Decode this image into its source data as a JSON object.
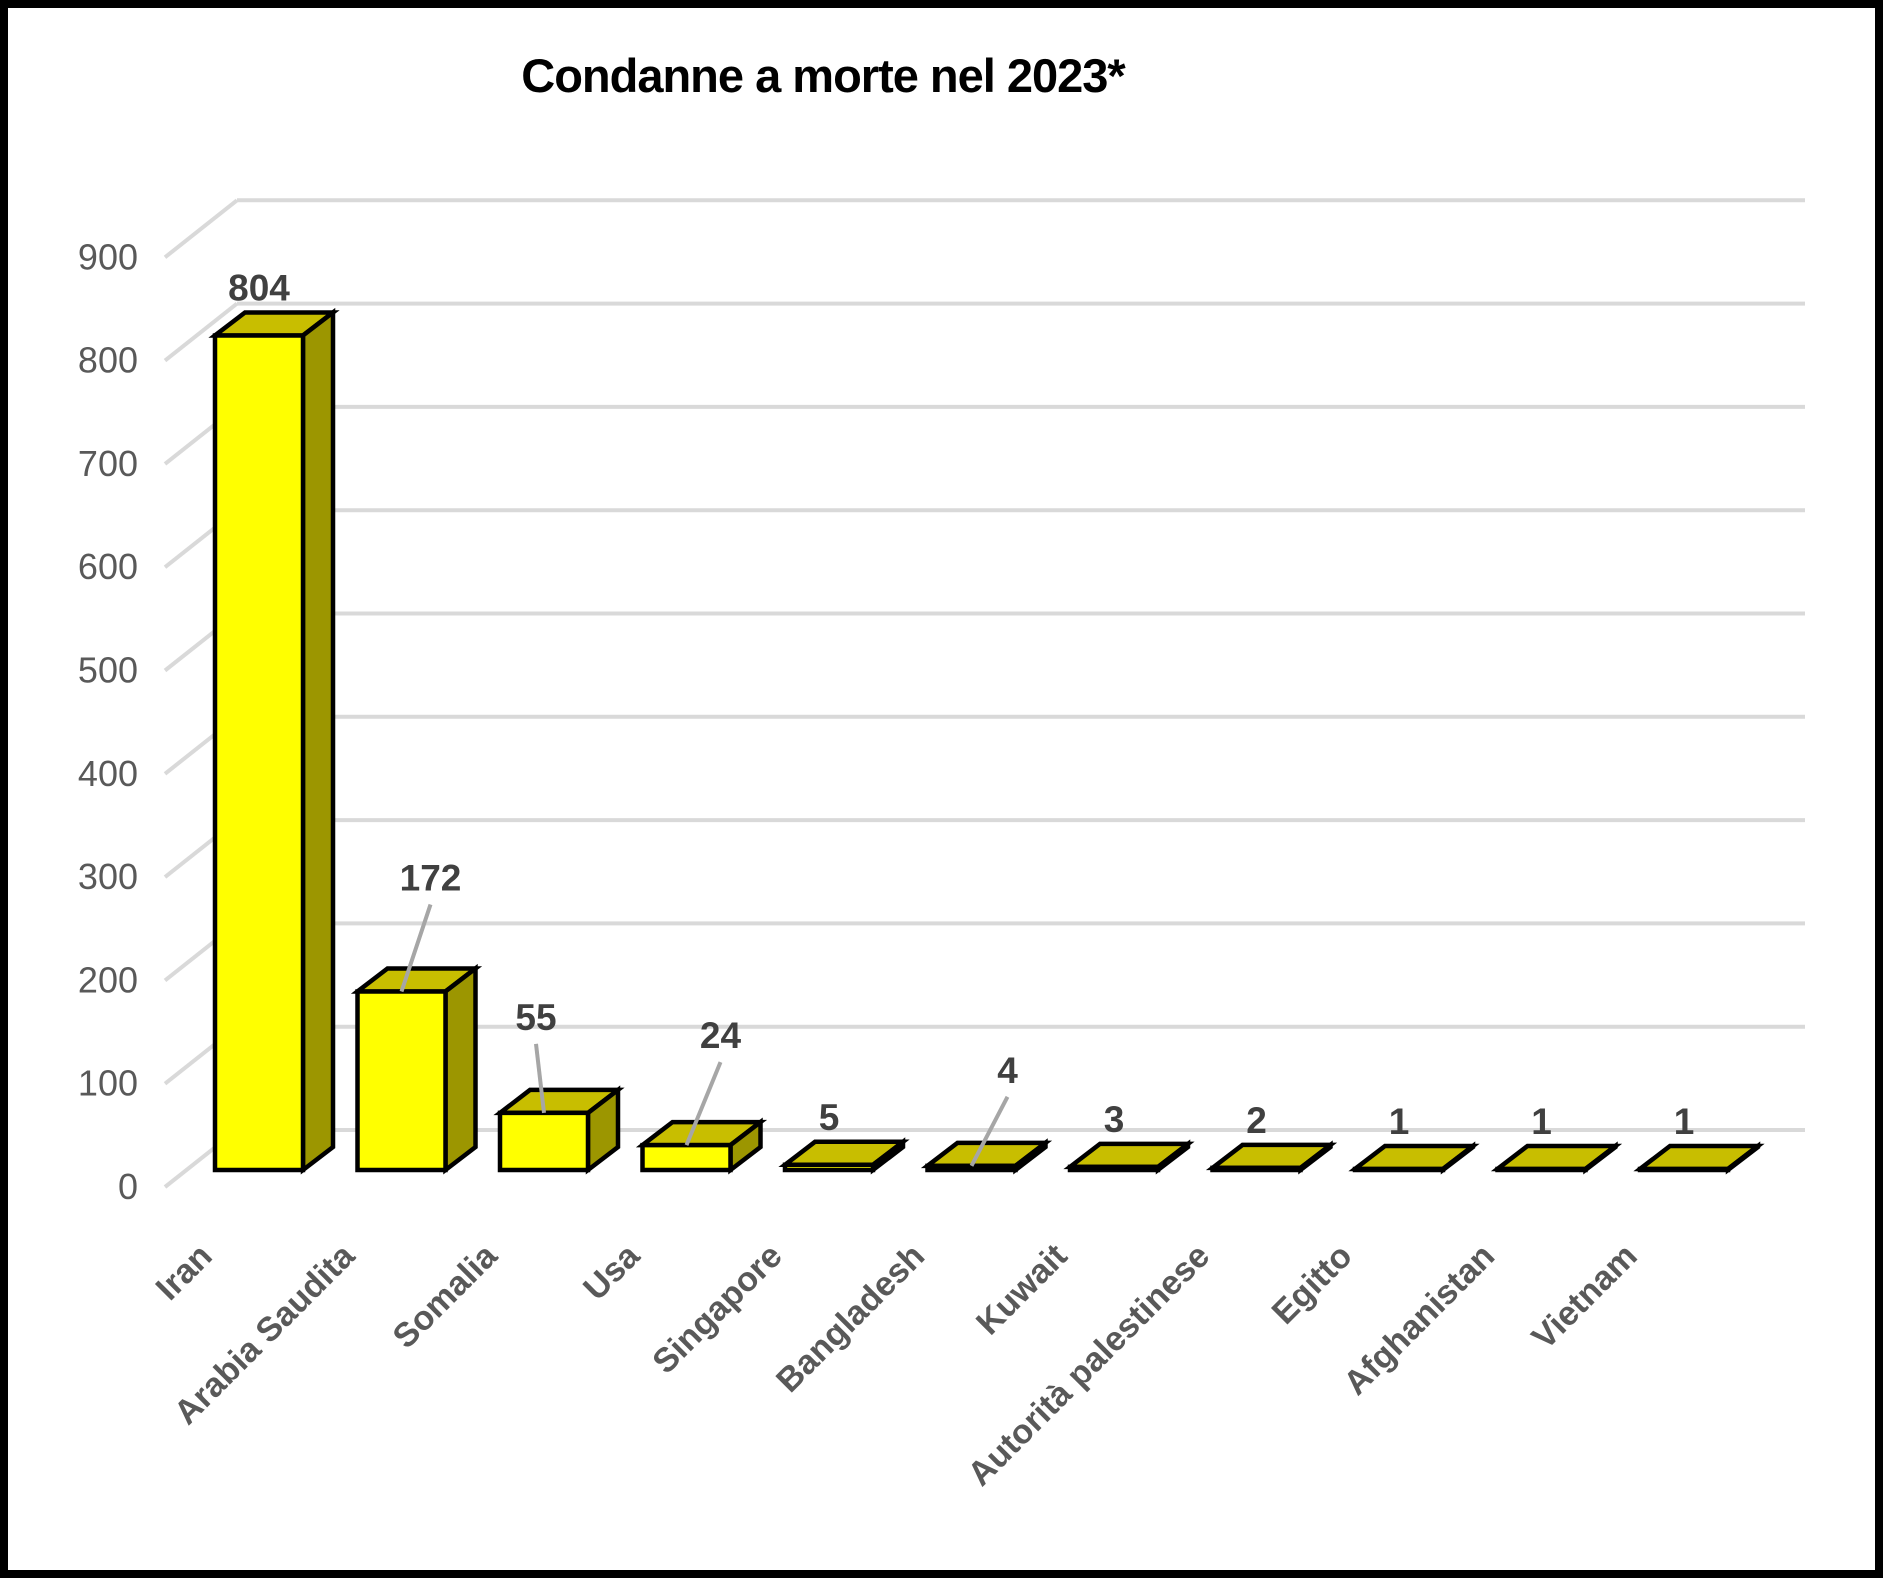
{
  "frame": {
    "background_color": "#FFFFFF",
    "border_color": "#000000"
  },
  "chart_data": {
    "type": "bar",
    "projection": "3d",
    "title": "Condanne a morte nel 2023*",
    "categories": [
      "Iran",
      "Arabia Saudita",
      "Somalia",
      "Usa",
      "Singapore",
      "Bangladesh",
      "Kuwait",
      "Autorità palestinese",
      "Egitto",
      "Afghanistan",
      "Vietnam"
    ],
    "values": [
      804,
      172,
      55,
      24,
      5,
      4,
      3,
      2,
      1,
      1,
      1
    ],
    "data_labels": [
      "804",
      "172",
      "55",
      "24",
      "5",
      "4",
      "3",
      "2",
      "1",
      "1",
      "1"
    ],
    "xlabel": "",
    "ylabel": "",
    "ylim": [
      0,
      900
    ],
    "ytick_step": 100,
    "yticks": [
      0,
      100,
      200,
      300,
      400,
      500,
      600,
      700,
      800,
      900
    ],
    "grid": true,
    "legend_position": "none",
    "labels_with_leader": [
      "Arabia Saudita",
      "Somalia",
      "Usa",
      "Bangladesh"
    ],
    "colors": {
      "bar_front": "#FFFF00",
      "bar_top": "#C8BE00",
      "bar_side": "#9C9600",
      "bar_outline": "#000000",
      "gridline": "#D9D9D9",
      "leader_line": "#A6A6A6",
      "data_label": "#404040",
      "axis_label": "#595959",
      "title": "#000000"
    }
  }
}
